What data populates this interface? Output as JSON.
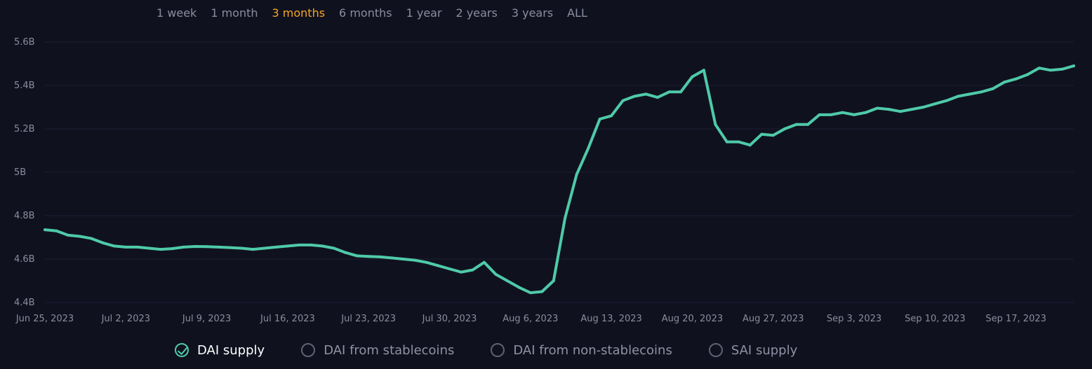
{
  "range_selector": {
    "options": [
      "1 week",
      "1 month",
      "3 months",
      "6 months",
      "1 year",
      "2 years",
      "3 years",
      "ALL"
    ],
    "active": "3 months",
    "active_color": "#f5a623"
  },
  "legend": {
    "items": [
      {
        "label": "DAI supply",
        "checked": true
      },
      {
        "label": "DAI from stablecoins",
        "checked": false
      },
      {
        "label": "DAI from non-stablecoins",
        "checked": false
      },
      {
        "label": "SAI supply",
        "checked": false
      }
    ]
  },
  "chart_data": {
    "type": "line",
    "title": "",
    "xlabel": "",
    "ylabel": "",
    "ylim": [
      4.4,
      5.6
    ],
    "y_ticks": [
      {
        "value": 5.6,
        "label": "5.6B"
      },
      {
        "value": 5.4,
        "label": "5.4B"
      },
      {
        "value": 5.2,
        "label": "5.2B"
      },
      {
        "value": 5.0,
        "label": "5B"
      },
      {
        "value": 4.8,
        "label": "4.8B"
      },
      {
        "value": 4.6,
        "label": "4.6B"
      },
      {
        "value": 4.4,
        "label": "4.4B"
      }
    ],
    "x_ticks": [
      {
        "value": "2023-06-25",
        "label": "Jun 25, 2023"
      },
      {
        "value": "2023-07-02",
        "label": "Jul 2, 2023"
      },
      {
        "value": "2023-07-09",
        "label": "Jul 9, 2023"
      },
      {
        "value": "2023-07-16",
        "label": "Jul 16, 2023"
      },
      {
        "value": "2023-07-23",
        "label": "Jul 23, 2023"
      },
      {
        "value": "2023-07-30",
        "label": "Jul 30, 2023"
      },
      {
        "value": "2023-08-06",
        "label": "Aug 6, 2023"
      },
      {
        "value": "2023-08-13",
        "label": "Aug 13, 2023"
      },
      {
        "value": "2023-08-20",
        "label": "Aug 20, 2023"
      },
      {
        "value": "2023-08-27",
        "label": "Aug 27, 2023"
      },
      {
        "value": "2023-09-03",
        "label": "Sep 3, 2023"
      },
      {
        "value": "2023-09-10",
        "label": "Sep 10, 2023"
      },
      {
        "value": "2023-09-17",
        "label": "Sep 17, 2023"
      }
    ],
    "grid": true,
    "line_color": "#4fcaa8",
    "series": [
      {
        "name": "DAI supply",
        "points": [
          {
            "x": "2023-06-25",
            "y": 4.735
          },
          {
            "x": "2023-06-26",
            "y": 4.73
          },
          {
            "x": "2023-06-27",
            "y": 4.71
          },
          {
            "x": "2023-06-28",
            "y": 4.705
          },
          {
            "x": "2023-06-29",
            "y": 4.695
          },
          {
            "x": "2023-06-30",
            "y": 4.675
          },
          {
            "x": "2023-07-01",
            "y": 4.66
          },
          {
            "x": "2023-07-02",
            "y": 4.655
          },
          {
            "x": "2023-07-03",
            "y": 4.655
          },
          {
            "x": "2023-07-04",
            "y": 4.65
          },
          {
            "x": "2023-07-05",
            "y": 4.645
          },
          {
            "x": "2023-07-06",
            "y": 4.648
          },
          {
            "x": "2023-07-07",
            "y": 4.655
          },
          {
            "x": "2023-07-08",
            "y": 4.658
          },
          {
            "x": "2023-07-09",
            "y": 4.657
          },
          {
            "x": "2023-07-10",
            "y": 4.655
          },
          {
            "x": "2023-07-11",
            "y": 4.653
          },
          {
            "x": "2023-07-12",
            "y": 4.65
          },
          {
            "x": "2023-07-13",
            "y": 4.645
          },
          {
            "x": "2023-07-14",
            "y": 4.65
          },
          {
            "x": "2023-07-15",
            "y": 4.655
          },
          {
            "x": "2023-07-16",
            "y": 4.66
          },
          {
            "x": "2023-07-17",
            "y": 4.665
          },
          {
            "x": "2023-07-18",
            "y": 4.665
          },
          {
            "x": "2023-07-19",
            "y": 4.66
          },
          {
            "x": "2023-07-20",
            "y": 4.65
          },
          {
            "x": "2023-07-21",
            "y": 4.63
          },
          {
            "x": "2023-07-22",
            "y": 4.615
          },
          {
            "x": "2023-07-23",
            "y": 4.612
          },
          {
            "x": "2023-07-24",
            "y": 4.61
          },
          {
            "x": "2023-07-25",
            "y": 4.605
          },
          {
            "x": "2023-07-26",
            "y": 4.6
          },
          {
            "x": "2023-07-27",
            "y": 4.595
          },
          {
            "x": "2023-07-28",
            "y": 4.585
          },
          {
            "x": "2023-07-29",
            "y": 4.57
          },
          {
            "x": "2023-07-30",
            "y": 4.555
          },
          {
            "x": "2023-07-31",
            "y": 4.54
          },
          {
            "x": "2023-08-01",
            "y": 4.55
          },
          {
            "x": "2023-08-02",
            "y": 4.585
          },
          {
            "x": "2023-08-03",
            "y": 4.53
          },
          {
            "x": "2023-08-04",
            "y": 4.5
          },
          {
            "x": "2023-08-05",
            "y": 4.47
          },
          {
            "x": "2023-08-06",
            "y": 4.445
          },
          {
            "x": "2023-08-07",
            "y": 4.45
          },
          {
            "x": "2023-08-08",
            "y": 4.5
          },
          {
            "x": "2023-08-09",
            "y": 4.79
          },
          {
            "x": "2023-08-10",
            "y": 4.99
          },
          {
            "x": "2023-08-11",
            "y": 5.11
          },
          {
            "x": "2023-08-12",
            "y": 5.245
          },
          {
            "x": "2023-08-13",
            "y": 5.26
          },
          {
            "x": "2023-08-14",
            "y": 5.33
          },
          {
            "x": "2023-08-15",
            "y": 5.35
          },
          {
            "x": "2023-08-16",
            "y": 5.36
          },
          {
            "x": "2023-08-17",
            "y": 5.345
          },
          {
            "x": "2023-08-18",
            "y": 5.37
          },
          {
            "x": "2023-08-19",
            "y": 5.37
          },
          {
            "x": "2023-08-20",
            "y": 5.44
          },
          {
            "x": "2023-08-21",
            "y": 5.47
          },
          {
            "x": "2023-08-22",
            "y": 5.22
          },
          {
            "x": "2023-08-23",
            "y": 5.14
          },
          {
            "x": "2023-08-24",
            "y": 5.14
          },
          {
            "x": "2023-08-25",
            "y": 5.125
          },
          {
            "x": "2023-08-26",
            "y": 5.175
          },
          {
            "x": "2023-08-27",
            "y": 5.17
          },
          {
            "x": "2023-08-28",
            "y": 5.2
          },
          {
            "x": "2023-08-29",
            "y": 5.22
          },
          {
            "x": "2023-08-30",
            "y": 5.22
          },
          {
            "x": "2023-08-31",
            "y": 5.265
          },
          {
            "x": "2023-09-01",
            "y": 5.265
          },
          {
            "x": "2023-09-02",
            "y": 5.275
          },
          {
            "x": "2023-09-03",
            "y": 5.265
          },
          {
            "x": "2023-09-04",
            "y": 5.275
          },
          {
            "x": "2023-09-05",
            "y": 5.295
          },
          {
            "x": "2023-09-06",
            "y": 5.29
          },
          {
            "x": "2023-09-07",
            "y": 5.28
          },
          {
            "x": "2023-09-08",
            "y": 5.29
          },
          {
            "x": "2023-09-09",
            "y": 5.3
          },
          {
            "x": "2023-09-10",
            "y": 5.315
          },
          {
            "x": "2023-09-11",
            "y": 5.33
          },
          {
            "x": "2023-09-12",
            "y": 5.35
          },
          {
            "x": "2023-09-13",
            "y": 5.36
          },
          {
            "x": "2023-09-14",
            "y": 5.37
          },
          {
            "x": "2023-09-15",
            "y": 5.385
          },
          {
            "x": "2023-09-16",
            "y": 5.415
          },
          {
            "x": "2023-09-17",
            "y": 5.43
          },
          {
            "x": "2023-09-18",
            "y": 5.45
          },
          {
            "x": "2023-09-19",
            "y": 5.48
          },
          {
            "x": "2023-09-20",
            "y": 5.47
          },
          {
            "x": "2023-09-21",
            "y": 5.475
          },
          {
            "x": "2023-09-22",
            "y": 5.49
          }
        ]
      }
    ]
  }
}
